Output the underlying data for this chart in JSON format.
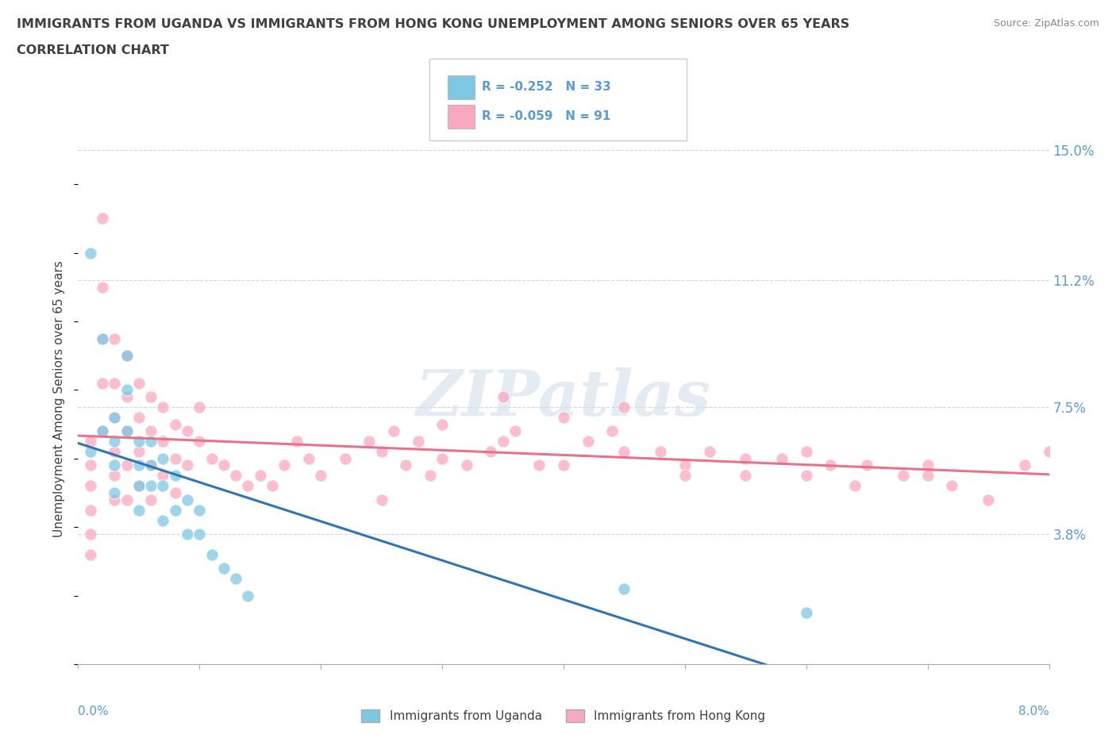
{
  "title_line1": "IMMIGRANTS FROM UGANDA VS IMMIGRANTS FROM HONG KONG UNEMPLOYMENT AMONG SENIORS OVER 65 YEARS",
  "title_line2": "CORRELATION CHART",
  "source": "Source: ZipAtlas.com",
  "ylabel": "Unemployment Among Seniors over 65 years",
  "xlim": [
    0.0,
    0.08
  ],
  "ylim": [
    0.0,
    0.155
  ],
  "ytick_labels": [
    "15.0%",
    "11.2%",
    "7.5%",
    "3.8%"
  ],
  "ytick_values": [
    0.15,
    0.112,
    0.075,
    0.038
  ],
  "background_color": "#ffffff",
  "color_uganda": "#7ec8e3",
  "color_hk": "#f9a8c0",
  "legend_R_uganda": "R = -0.252",
  "legend_N_uganda": "N = 33",
  "legend_R_hk": "R = -0.059",
  "legend_N_hk": "N = 91",
  "legend_label_uganda": "Immigrants from Uganda",
  "legend_label_hk": "Immigrants from Hong Kong",
  "watermark": "ZIPatlas",
  "title_color": "#404040",
  "axis_label_color": "#5b9bd5",
  "trend_color_uganda": "#2e75b6",
  "trend_color_hk": "#e8728a",
  "uganda_x": [
    0.001,
    0.001,
    0.002,
    0.002,
    0.003,
    0.003,
    0.003,
    0.003,
    0.004,
    0.004,
    0.004,
    0.005,
    0.005,
    0.005,
    0.005,
    0.006,
    0.006,
    0.006,
    0.007,
    0.007,
    0.007,
    0.008,
    0.008,
    0.009,
    0.009,
    0.01,
    0.01,
    0.011,
    0.012,
    0.013,
    0.014,
    0.045,
    0.06
  ],
  "uganda_y": [
    0.062,
    0.12,
    0.068,
    0.095,
    0.072,
    0.065,
    0.058,
    0.05,
    0.09,
    0.08,
    0.068,
    0.065,
    0.058,
    0.052,
    0.045,
    0.065,
    0.058,
    0.052,
    0.06,
    0.052,
    0.042,
    0.055,
    0.045,
    0.048,
    0.038,
    0.045,
    0.038,
    0.032,
    0.028,
    0.025,
    0.02,
    0.022,
    0.015
  ],
  "hk_x": [
    0.001,
    0.001,
    0.001,
    0.001,
    0.001,
    0.001,
    0.002,
    0.002,
    0.002,
    0.002,
    0.002,
    0.003,
    0.003,
    0.003,
    0.003,
    0.003,
    0.003,
    0.004,
    0.004,
    0.004,
    0.004,
    0.004,
    0.005,
    0.005,
    0.005,
    0.005,
    0.006,
    0.006,
    0.006,
    0.006,
    0.007,
    0.007,
    0.007,
    0.008,
    0.008,
    0.008,
    0.009,
    0.009,
    0.01,
    0.01,
    0.011,
    0.012,
    0.013,
    0.014,
    0.015,
    0.016,
    0.017,
    0.018,
    0.019,
    0.02,
    0.022,
    0.024,
    0.025,
    0.026,
    0.027,
    0.028,
    0.029,
    0.03,
    0.032,
    0.034,
    0.035,
    0.036,
    0.038,
    0.04,
    0.042,
    0.044,
    0.045,
    0.048,
    0.05,
    0.052,
    0.055,
    0.058,
    0.06,
    0.062,
    0.064,
    0.068,
    0.07,
    0.072,
    0.075,
    0.078,
    0.08,
    0.06,
    0.065,
    0.07,
    0.03,
    0.035,
    0.04,
    0.045,
    0.05,
    0.025,
    0.055
  ],
  "hk_y": [
    0.065,
    0.058,
    0.052,
    0.045,
    0.038,
    0.032,
    0.13,
    0.11,
    0.095,
    0.082,
    0.068,
    0.095,
    0.082,
    0.072,
    0.062,
    0.055,
    0.048,
    0.09,
    0.078,
    0.068,
    0.058,
    0.048,
    0.082,
    0.072,
    0.062,
    0.052,
    0.078,
    0.068,
    0.058,
    0.048,
    0.075,
    0.065,
    0.055,
    0.07,
    0.06,
    0.05,
    0.068,
    0.058,
    0.075,
    0.065,
    0.06,
    0.058,
    0.055,
    0.052,
    0.055,
    0.052,
    0.058,
    0.065,
    0.06,
    0.055,
    0.06,
    0.065,
    0.062,
    0.068,
    0.058,
    0.065,
    0.055,
    0.06,
    0.058,
    0.062,
    0.078,
    0.068,
    0.058,
    0.072,
    0.065,
    0.068,
    0.075,
    0.062,
    0.058,
    0.062,
    0.055,
    0.06,
    0.055,
    0.058,
    0.052,
    0.055,
    0.058,
    0.052,
    0.048,
    0.058,
    0.062,
    0.062,
    0.058,
    0.055,
    0.07,
    0.065,
    0.058,
    0.062,
    0.055,
    0.048,
    0.06
  ]
}
